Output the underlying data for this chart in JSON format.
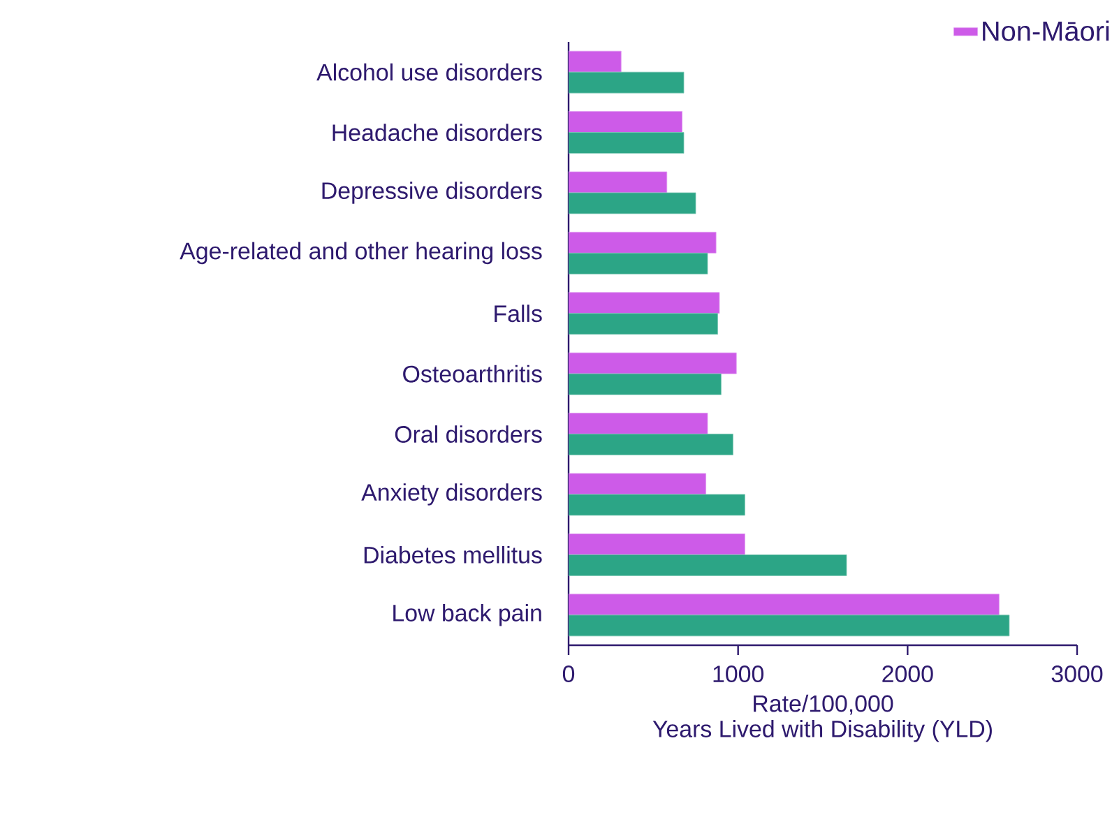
{
  "chart_data": {
    "type": "bar",
    "orientation": "horizontal",
    "xlabel": "Rate/100,000",
    "annotations": [
      "Years Lived with Disability (YLD)"
    ],
    "categories": [
      "Alcohol use disorders",
      "Headache disorders",
      "Depressive disorders",
      "Age-related and other hearing loss",
      "Falls",
      "Osteoarthritis",
      "Oral disorders",
      "Anxiety disorders",
      "Diabetes mellitus",
      "Low back pain"
    ],
    "series": [
      {
        "name": "Non-Māori",
        "color": "#cd5be8",
        "values": [
          310,
          670,
          580,
          870,
          890,
          990,
          820,
          810,
          1040,
          2540
        ]
      },
      {
        "color": "#2ca586",
        "values": [
          680,
          680,
          750,
          820,
          880,
          900,
          970,
          1040,
          1640,
          2600
        ]
      }
    ],
    "xlim": [
      0,
      3000
    ],
    "xticks": [
      0,
      1000,
      2000,
      3000
    ],
    "legend": "top right",
    "grid": false
  }
}
